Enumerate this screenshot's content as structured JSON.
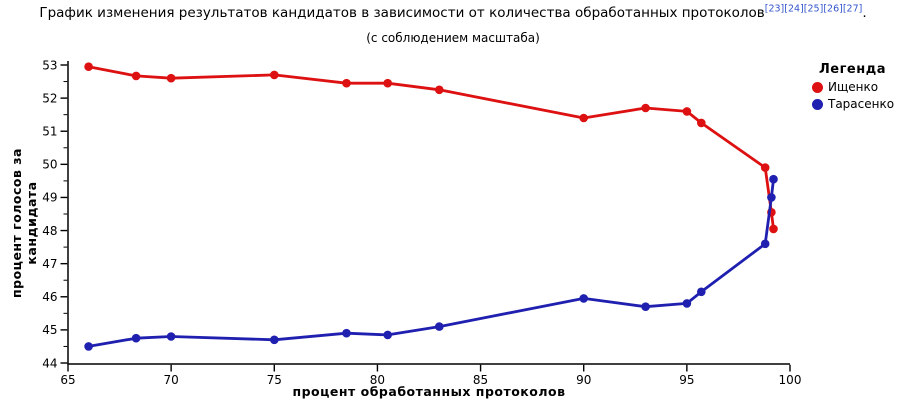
{
  "header": {
    "citations": [
      "[23]",
      "[24]",
      "[25]",
      "[26]",
      "[27]"
    ],
    "title_suffix": "."
  },
  "legend": {
    "title": "Легенда"
  },
  "colors": {
    "axis": "#000000",
    "citation_link": "#3355cc",
    "ischenko": "#dd1111",
    "tarasenko": "#2020b0"
  },
  "chart_data": {
    "type": "line",
    "title": "График изменения результатов кандидатов в зависимости от количества обработанных протоколов",
    "subtitle": "(с соблюдением масштаба)",
    "xlabel": "процент обработанных протоколов",
    "ylabel": "процент голосов за кандидата",
    "xlim": [
      65,
      100
    ],
    "ylim": [
      44,
      53
    ],
    "x_major_ticks": [
      65,
      70,
      75,
      80,
      85,
      90,
      95,
      100
    ],
    "y_major_ticks": [
      44,
      45,
      46,
      47,
      48,
      49,
      50,
      51,
      52,
      53
    ],
    "y_minor_step": 0.5,
    "grid": false,
    "legend_position": "top-right",
    "series": [
      {
        "name": "Ищенко",
        "color": "#dd1111",
        "points": [
          [
            66,
            52.95
          ],
          [
            68.3,
            52.67
          ],
          [
            70,
            52.6
          ],
          [
            75,
            52.7
          ],
          [
            78.5,
            52.45
          ],
          [
            80.5,
            52.45
          ],
          [
            83,
            52.25
          ],
          [
            90,
            51.4
          ],
          [
            93,
            51.7
          ],
          [
            95,
            51.6
          ],
          [
            95.7,
            51.25
          ],
          [
            98.8,
            49.9
          ],
          [
            99.1,
            48.55
          ],
          [
            99.2,
            48.05
          ]
        ]
      },
      {
        "name": "Тарасенко",
        "color": "#2020b0",
        "points": [
          [
            66,
            44.5
          ],
          [
            68.3,
            44.75
          ],
          [
            70,
            44.8
          ],
          [
            75,
            44.7
          ],
          [
            78.5,
            44.9
          ],
          [
            80.5,
            44.85
          ],
          [
            83,
            45.1
          ],
          [
            90,
            45.95
          ],
          [
            93,
            45.7
          ],
          [
            95,
            45.8
          ],
          [
            95.7,
            46.15
          ],
          [
            98.8,
            47.6
          ],
          [
            99.1,
            49.0
          ],
          [
            99.2,
            49.55
          ]
        ]
      }
    ]
  }
}
